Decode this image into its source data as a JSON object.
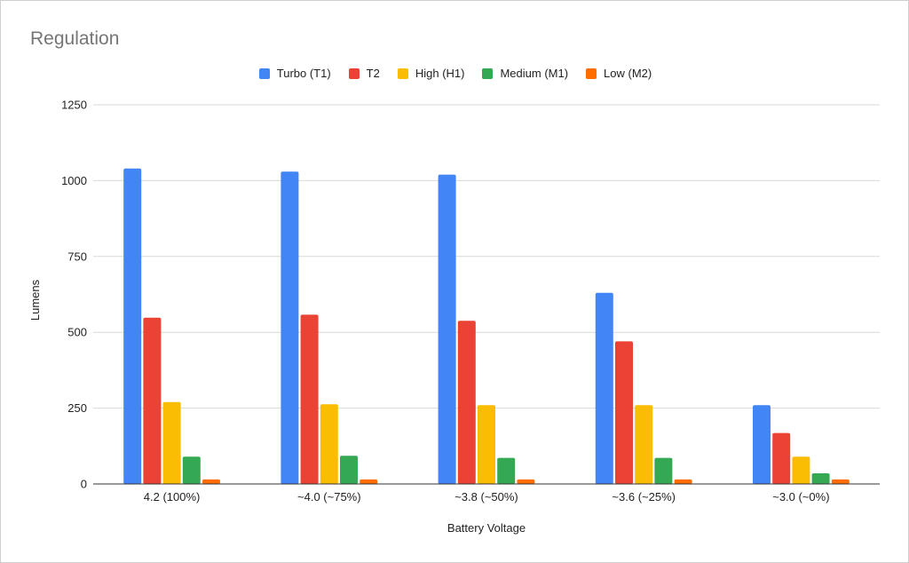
{
  "chart_data": {
    "type": "bar",
    "title": "Regulation",
    "xlabel": "Battery Voltage",
    "ylabel": "Lumens",
    "ylim": [
      0,
      1250
    ],
    "yticks": [
      0,
      250,
      500,
      750,
      1000,
      1250
    ],
    "categories": [
      "4.2 (100%)",
      "~4.0 (~75%)",
      "~3.8 (~50%)",
      "~3.6 (~25%)",
      "~3.0 (~0%)"
    ],
    "series": [
      {
        "name": "Turbo (T1)",
        "color": "#4285F4",
        "values": [
          1040,
          1030,
          1020,
          630,
          260
        ]
      },
      {
        "name": "T2",
        "color": "#EA4335",
        "values": [
          548,
          558,
          538,
          470,
          168
        ]
      },
      {
        "name": "High (H1)",
        "color": "#FBBC04",
        "values": [
          270,
          263,
          260,
          260,
          90
        ]
      },
      {
        "name": "Medium (M1)",
        "color": "#34A853",
        "values": [
          90,
          93,
          86,
          86,
          35
        ]
      },
      {
        "name": "Low (M2)",
        "color": "#FF6D01",
        "values": [
          15,
          15,
          15,
          15,
          15
        ]
      }
    ],
    "grid": true,
    "legend_position": "top-center"
  }
}
